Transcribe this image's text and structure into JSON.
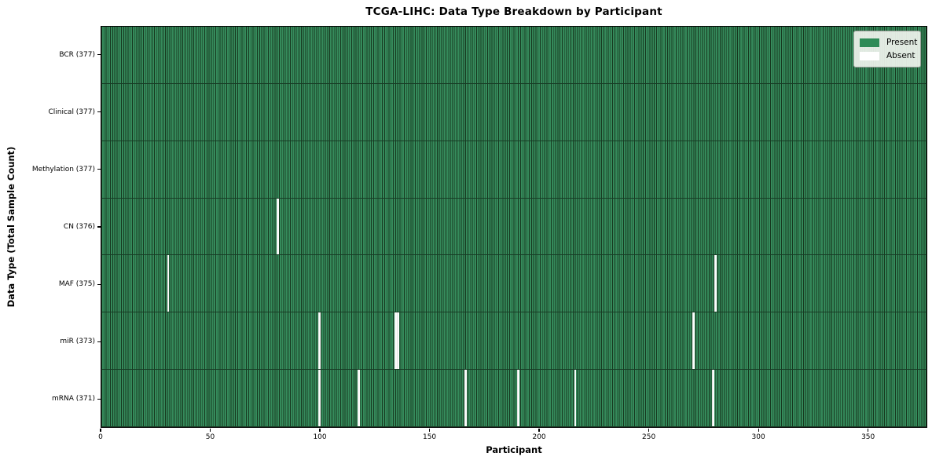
{
  "figure": {
    "title": "TCGA-LIHC: Data Type Breakdown by Participant",
    "xlabel": "Participant",
    "ylabel": "Data Type (Total Sample Count)"
  },
  "chart_data": {
    "type": "heatmap",
    "title": "TCGA-LIHC: Data Type Breakdown by Participant",
    "xlabel": "Participant",
    "ylabel": "Data Type (Total Sample Count)",
    "n_participants": 377,
    "x_ticks": [
      0,
      50,
      100,
      150,
      200,
      250,
      300,
      350
    ],
    "x_range": [
      0,
      377
    ],
    "grid": false,
    "legend_position": "upper right",
    "colors": {
      "present": "#2e8b57",
      "absent": "#ffffff",
      "cell_edge": "#17381f",
      "row_separator": "#173c25",
      "legend_bg": "#eef2ec"
    },
    "legend": [
      {
        "label": "Present",
        "color": "#2e8b57"
      },
      {
        "label": "Absent",
        "color": "#ffffff"
      }
    ],
    "rows": [
      {
        "label": "BCR (377)",
        "name": "BCR",
        "total": 377,
        "absent_participants": []
      },
      {
        "label": "Clinical (377)",
        "name": "Clinical",
        "total": 377,
        "absent_participants": []
      },
      {
        "label": "Methylation (377)",
        "name": "Methylation",
        "total": 377,
        "absent_participants": []
      },
      {
        "label": "CN (376)",
        "name": "CN",
        "total": 376,
        "absent_participants": [
          80
        ]
      },
      {
        "label": "MAF (375)",
        "name": "MAF",
        "total": 375,
        "absent_participants": [
          30,
          280
        ]
      },
      {
        "label": "miR (373)",
        "name": "miR",
        "total": 373,
        "absent_participants": [
          99,
          134,
          135,
          270
        ]
      },
      {
        "label": "mRNA (371)",
        "name": "mRNA",
        "total": 371,
        "absent_participants": [
          99,
          117,
          166,
          190,
          216,
          279
        ]
      }
    ]
  }
}
